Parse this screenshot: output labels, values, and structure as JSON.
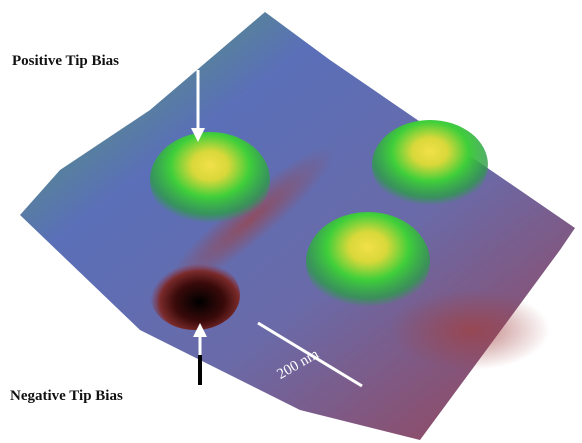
{
  "labels": {
    "top": "Positive Tip Bias",
    "bottom": "Negative Tip Bias",
    "scale": "200 nm"
  }
}
